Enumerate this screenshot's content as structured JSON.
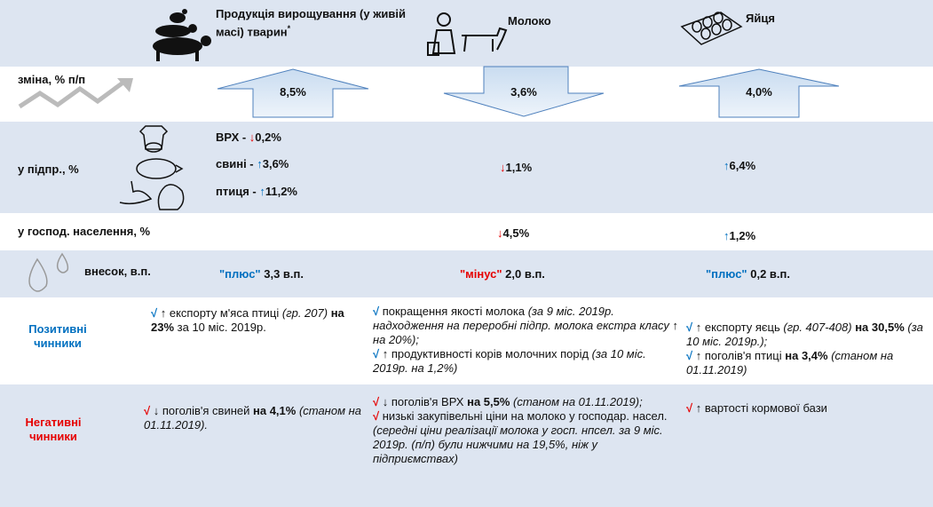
{
  "header": {
    "columns": [
      "Продукція вирощування (у живій масі) тварин",
      "Молоко",
      "Яйця"
    ],
    "footnote_mark": "*"
  },
  "change": {
    "label": "зміна, % п/п",
    "values": [
      "8,5%",
      "3,6%",
      "4,0%"
    ]
  },
  "enterprises": {
    "label": "у підпр., %",
    "livestock": [
      {
        "name": "ВРХ - ",
        "arrow": "↓",
        "value": "0,2%"
      },
      {
        "name": "свині - ",
        "arrow": "↑",
        "value": "3,6%"
      },
      {
        "name": "птиця - ",
        "arrow": "↑",
        "value": "11,2%"
      }
    ],
    "milk": {
      "arrow": "↓",
      "value": "1,1%"
    },
    "eggs": {
      "arrow": "↑",
      "value": "6,4%"
    }
  },
  "households": {
    "label": "у господ. населення, %",
    "milk": {
      "arrow": "↓",
      "value": "4,5%"
    },
    "eggs": {
      "arrow": "↑",
      "value": "1,2%"
    }
  },
  "contribution": {
    "label": "внесок, в.п.",
    "values": [
      {
        "sign": "\"плюс\"",
        "value": " 3,3 в.п."
      },
      {
        "sign": "\"мінус\"",
        "value": " 2,0 в.п."
      },
      {
        "sign": "\"плюс\"",
        "value": " 0,2 в.п."
      }
    ]
  },
  "positive": {
    "label": "Позитивні чинники",
    "livestock": [
      [
        "√",
        " ↑ експорту м'яса птиці ",
        "(гр. 207)",
        " на 23%",
        " за 10 міс. 2019р."
      ]
    ],
    "milk": [
      [
        "√",
        " покращення якості молока ",
        "(за 9 міс. 2019р. надходження на переробні підпр. молока екстра класу ",
        "↑",
        " на 20%);"
      ],
      [
        "√",
        " ↑ продуктивності корів молочних порід ",
        "(за 10 міс. 2019р. на 1,2%)"
      ]
    ],
    "eggs": [
      [
        "√",
        " ↑ експорту яєць ",
        "(гр. 407-408)",
        " на 30,5%",
        " (за 10 міс. 2019р.);"
      ],
      [
        "√",
        " ↑ поголів'я птиці ",
        "на 3,4%",
        " (станом на 01.11.2019)"
      ]
    ]
  },
  "negative": {
    "label": "Негативні чинники",
    "livestock": [
      [
        "√",
        " ↓ поголів'я свиней ",
        "на 4,1%",
        " (станом на 01.11.2019)."
      ]
    ],
    "milk": [
      [
        "√",
        " ↓ поголів'я ВРХ ",
        "на 5,5%",
        " (станом на 01.11.2019);"
      ],
      [
        "√",
        " низькі закупівельні ціни на молоко у господар. насел. ",
        "(середні ціни реалізації молока у госп. нпсел. за 9 міс. 2019р. (п/п) були нижчими на 19,5%, ніж у підприємствах)"
      ]
    ],
    "eggs": [
      [
        "√",
        " ↑ вартості кормової бази"
      ]
    ]
  }
}
